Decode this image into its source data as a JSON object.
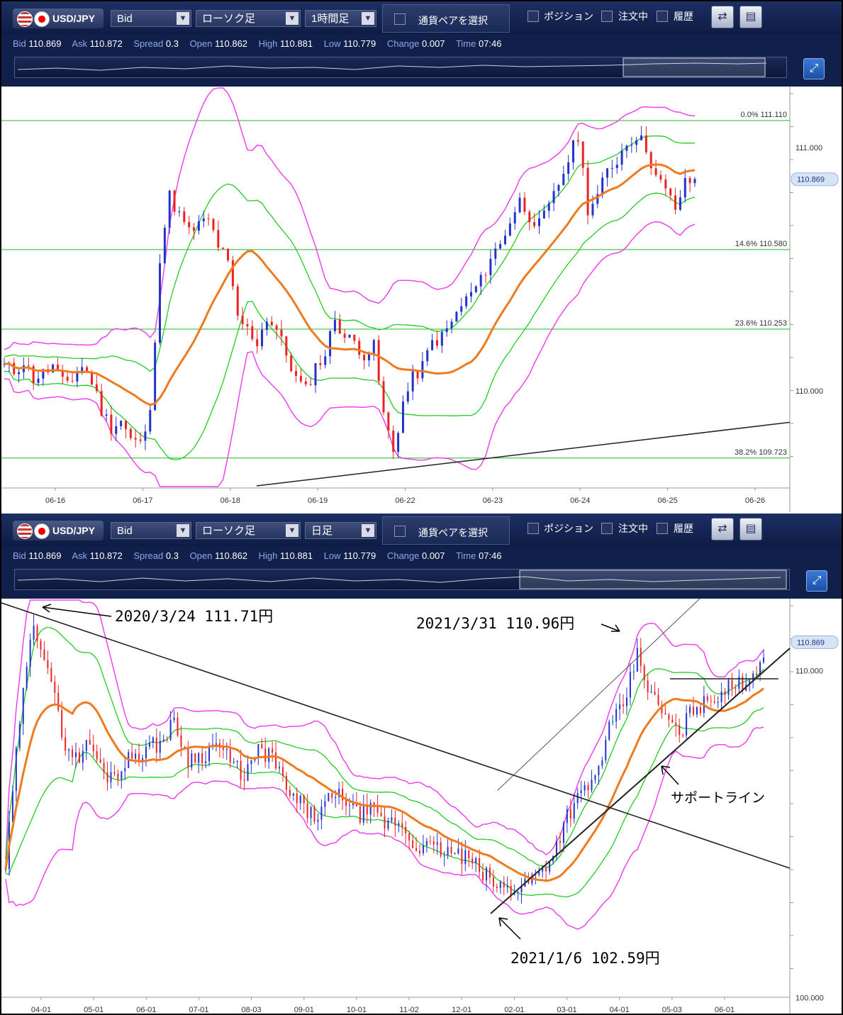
{
  "panels": [
    {
      "header": {
        "pair_label": "USD/JPY",
        "price_type": "Bid",
        "chart_type": "ローソク足",
        "timeframe": "1時間足",
        "pair_select_label": "通貨ペアを選択",
        "position_label": "ポジション",
        "orders_label": "注文中",
        "history_label": "履歴"
      },
      "info": {
        "bid_label": "Bid",
        "bid": "110.869",
        "ask_label": "Ask",
        "ask": "110.872",
        "spread_label": "Spread",
        "spread": "0.3",
        "open_label": "Open",
        "open": "110.862",
        "high_label": "High",
        "high": "110.881",
        "low_label": "Low",
        "low": "110.779",
        "change_label": "Change",
        "change": "0.007",
        "time_label": "Time",
        "time": "07:46"
      }
    },
    {
      "header": {
        "pair_label": "USD/JPY",
        "price_type": "Bid",
        "chart_type": "ローソク足",
        "timeframe": "日足",
        "pair_select_label": "通貨ペアを選択",
        "position_label": "ポジション",
        "orders_label": "注文中",
        "history_label": "履歴"
      },
      "info": {
        "bid_label": "Bid",
        "bid": "110.869",
        "ask_label": "Ask",
        "ask": "110.872",
        "spread_label": "Spread",
        "spread": "0.3",
        "open_label": "Open",
        "open": "110.862",
        "high_label": "High",
        "high": "110.881",
        "low_label": "Low",
        "low": "110.779",
        "change_label": "Change",
        "change": "0.007",
        "time_label": "Time",
        "time": "07:46"
      }
    }
  ],
  "colors": {
    "bull_candle": "#2233cc",
    "bear_candle": "#ee2222",
    "middle_band": "#f07a1e",
    "sigma1_band": "#22cc22",
    "sigma2_band": "#ee44ee",
    "fib_line": "#22bb22",
    "trend_line": "#222222",
    "toolbar_bg": "#10204b"
  },
  "chart_data": [
    {
      "type": "candlestick",
      "timeframe": "1時間足",
      "ylim": [
        109.6,
        111.25
      ],
      "x_ticks": [
        "06-16",
        "06-17",
        "06-18",
        "06-19",
        "06-22",
        "06-23",
        "06-24",
        "06-25",
        "06-26"
      ],
      "y_ticks": [
        "111.000",
        "110.000"
      ],
      "current_price": "110.869",
      "fibonacci": [
        {
          "label": "0.0%",
          "price": "111.110",
          "value": 111.11
        },
        {
          "label": "14.6%",
          "price": "110.580",
          "value": 110.58
        },
        {
          "label": "23.6%",
          "price": "110.253",
          "value": 110.253
        },
        {
          "label": "38.2%",
          "price": "109.723",
          "value": 109.723
        }
      ],
      "trend_line": {
        "from_value": 109.6,
        "to_value": 109.87
      },
      "close_path": [
        110.1,
        110.08,
        110.12,
        110.05,
        110.07,
        110.1,
        110.03,
        110.05,
        110.1,
        110.04,
        109.92,
        109.85,
        109.88,
        109.8,
        109.78,
        109.9,
        110.55,
        110.8,
        110.72,
        110.65,
        110.68,
        110.7,
        110.6,
        110.52,
        110.3,
        110.25,
        110.2,
        110.3,
        110.25,
        110.15,
        110.05,
        110.0,
        110.1,
        110.15,
        110.3,
        110.22,
        110.2,
        110.15,
        110.18,
        109.9,
        109.75,
        109.95,
        110.05,
        110.1,
        110.2,
        110.22,
        110.28,
        110.35,
        110.4,
        110.45,
        110.55,
        110.6,
        110.7,
        110.78,
        110.72,
        110.68,
        110.75,
        110.85,
        110.95,
        111.05,
        110.75,
        110.8,
        110.9,
        110.95,
        111.02,
        111.05,
        111.0,
        110.88,
        110.82,
        110.75,
        110.85,
        110.87
      ]
    },
    {
      "type": "candlestick",
      "timeframe": "日足",
      "ylim": [
        99.9,
        112.2
      ],
      "x_ticks": [
        "04-01",
        "05-01",
        "06-01",
        "07-01",
        "08-03",
        "09-01",
        "10-01",
        "11-02",
        "12-01",
        "02-01",
        "03-01",
        "04-01",
        "05-03",
        "06-01"
      ],
      "y_ticks": [
        "110.000",
        "100.000"
      ],
      "current_price": "110.869",
      "annotations": [
        {
          "text": "2020/3/24 111.71円",
          "date": "2020/3/24",
          "value": 111.71
        },
        {
          "text": "2021/3/31 110.96円",
          "date": "2021/3/31",
          "value": 110.96
        },
        {
          "text": "2021/1/6 102.59円",
          "date": "2021/1/6",
          "value": 102.59
        },
        {
          "text": "サポートライン"
        }
      ],
      "close_path": [
        104.0,
        108.5,
        111.5,
        110.2,
        108.0,
        107.3,
        107.8,
        106.8,
        106.9,
        107.4,
        107.6,
        107.8,
        108.4,
        107.3,
        107.4,
        107.8,
        107.2,
        106.8,
        107.5,
        107.4,
        106.3,
        105.9,
        105.5,
        106.0,
        106.2,
        105.6,
        105.7,
        105.3,
        105.4,
        104.7,
        104.6,
        104.5,
        104.4,
        104.2,
        103.8,
        103.4,
        103.3,
        103.5,
        103.8,
        104.4,
        105.6,
        106.2,
        106.7,
        108.2,
        108.9,
        110.5,
        109.2,
        108.6,
        108.0,
        108.9,
        109.0,
        109.4,
        109.5,
        109.8,
        110.4
      ]
    }
  ]
}
